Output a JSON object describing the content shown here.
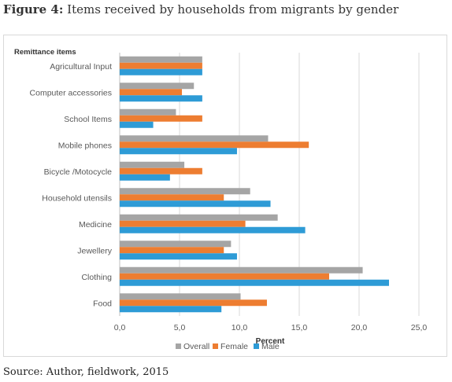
{
  "figure": {
    "label": "Figure 4:",
    "title": "Items received by households from migrants by gender",
    "source": "Source: Author, fieldwork, 2015"
  },
  "chart_data": {
    "type": "bar",
    "orientation": "horizontal",
    "ylabel": "Remittance items",
    "xlabel": "Percent",
    "xlim": [
      0,
      25
    ],
    "xticks": [
      "0,0",
      "5,0",
      "10,0",
      "15,0",
      "20,0",
      "25,0"
    ],
    "grid": true,
    "legend_position": "bottom",
    "categories": [
      "Agricultural Input",
      "Computer accessories",
      "School Items",
      "Mobile phones",
      "Bicycle /Motocycle",
      "Household utensils",
      "Medicine",
      "Jewellery",
      "Clothing",
      "Food"
    ],
    "series": [
      {
        "name": "Overall",
        "color": "#a5a5a5",
        "values": [
          6.9,
          6.2,
          4.7,
          12.4,
          5.4,
          10.9,
          13.2,
          9.3,
          20.3,
          10.1
        ]
      },
      {
        "name": "Female",
        "color": "#ed7d31",
        "values": [
          6.9,
          5.2,
          6.9,
          15.8,
          6.9,
          8.7,
          10.5,
          8.7,
          17.5,
          12.3
        ]
      },
      {
        "name": "Male",
        "color": "#2e9bd6",
        "values": [
          6.9,
          6.9,
          2.8,
          9.8,
          4.2,
          12.6,
          15.5,
          9.8,
          22.5,
          8.5
        ]
      }
    ]
  }
}
